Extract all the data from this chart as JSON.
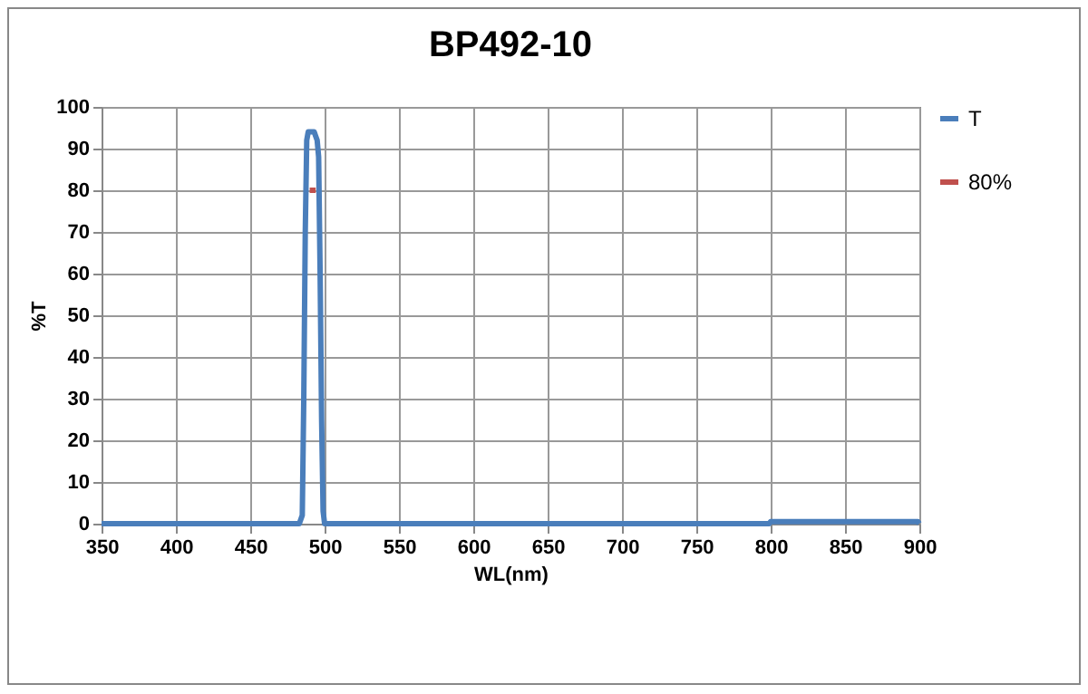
{
  "chart_data": {
    "type": "line",
    "title": "BP492-10",
    "xlabel": "WL(nm)",
    "ylabel": "%T",
    "xlim": [
      350,
      900
    ],
    "xticks": [
      350,
      400,
      450,
      500,
      550,
      600,
      650,
      700,
      750,
      800,
      850,
      900
    ],
    "ylim": [
      0,
      100
    ],
    "yticks": [
      0,
      10,
      20,
      30,
      40,
      50,
      60,
      70,
      80,
      90,
      100
    ],
    "grid": true,
    "legend": "right",
    "marker": "none",
    "line_style": "solid",
    "series": [
      {
        "name": "T",
        "color": "#4a7ebb",
        "x": [
          350,
          400,
          450,
          480,
          483,
          485,
          486,
          487,
          488,
          489,
          490,
          491,
          492,
          493,
          494,
          495,
          496,
          497,
          498,
          499,
          500,
          502,
          550,
          600,
          650,
          700,
          750,
          799,
          800,
          820,
          850,
          880,
          899,
          900
        ],
        "values": [
          0,
          0,
          0,
          0,
          0,
          2,
          30,
          70,
          92,
          94,
          94,
          94,
          94,
          94,
          93,
          92,
          88,
          60,
          25,
          3,
          0,
          0,
          0,
          0,
          0,
          0,
          0,
          0,
          0.5,
          0.5,
          0.5,
          0.5,
          0.5,
          0
        ]
      },
      {
        "name": "80%",
        "color": "#c0504d",
        "x": [
          490,
          494
        ],
        "values": [
          80,
          80
        ]
      }
    ]
  }
}
